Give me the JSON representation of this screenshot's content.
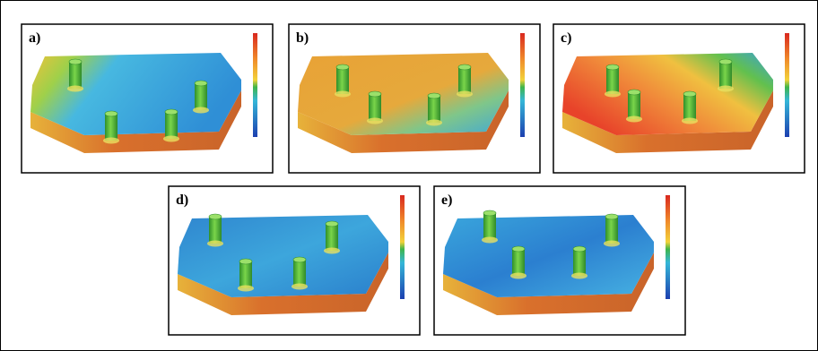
{
  "panels": [
    {
      "label": "a)"
    },
    {
      "label": "b)"
    },
    {
      "label": "c)"
    },
    {
      "label": "d)"
    },
    {
      "label": "e)"
    }
  ]
}
